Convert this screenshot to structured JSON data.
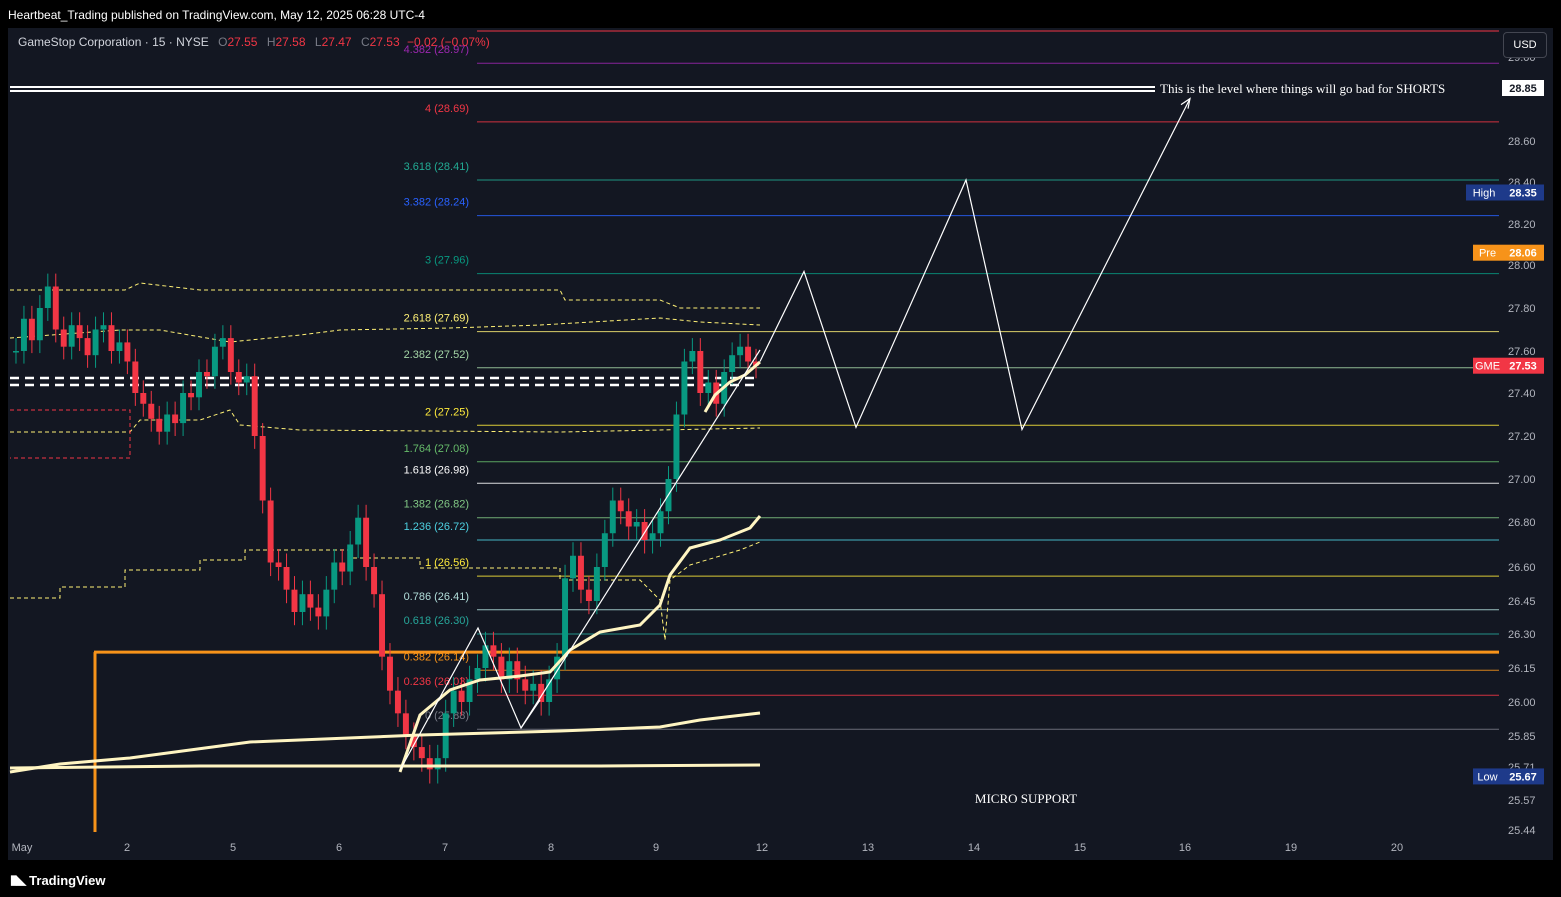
{
  "header": {
    "publisher": "Heartbeat_Trading published on TradingView.com, May 12, 2025 06:28 UTC-4"
  },
  "legend": {
    "symbol": "GameStop Corporation · 15 · NYSE",
    "o_label": "O",
    "o": "27.55",
    "h_label": "H",
    "h": "27.58",
    "l_label": "L",
    "l": "27.47",
    "c_label": "C",
    "c": "27.53",
    "change": "−0.02 (−0.07%)"
  },
  "currency_button": "USD",
  "footer": {
    "brand": "TradingView"
  },
  "colors": {
    "up": "#089981",
    "down": "#f23645",
    "vwap": "#fff5c2",
    "orange": "#f7931a",
    "bg": "#131722"
  },
  "chart_data": {
    "type": "candlestick",
    "title": "",
    "y_ticks": [
      "29.00",
      "28.85",
      "28.60",
      "28.40",
      "28.20",
      "28.00",
      "27.80",
      "27.60",
      "27.40",
      "27.20",
      "27.00",
      "26.80",
      "26.60",
      "26.45",
      "26.30",
      "26.15",
      "26.00",
      "25.85",
      "25.71",
      "25.57",
      "25.44"
    ],
    "x_ticks": [
      "May",
      "2",
      "5",
      "6",
      "7",
      "8",
      "9",
      "12",
      "13",
      "14",
      "15",
      "16",
      "19",
      "20"
    ],
    "fib_levels": [
      {
        "label": "4.382 (28.97)",
        "value": 28.97,
        "color": "#9c27b0"
      },
      {
        "label": "4 (28.69)",
        "value": 28.69,
        "color": "#f23645"
      },
      {
        "label": "3.618 (28.41)",
        "value": 28.41,
        "color": "#22ab94"
      },
      {
        "label": "3.382 (28.24)",
        "value": 28.24,
        "color": "#2962ff"
      },
      {
        "label": "3 (27.96)",
        "value": 27.96,
        "color": "#089981"
      },
      {
        "label": "2.618 (27.69)",
        "value": 27.69,
        "color": "#fff176"
      },
      {
        "label": "2.382 (27.52)",
        "value": 27.52,
        "color": "#a5d6a7"
      },
      {
        "label": "2 (27.25)",
        "value": 27.25,
        "color": "#ffeb3b"
      },
      {
        "label": "1.764 (27.08)",
        "value": 27.08,
        "color": "#66bb6a"
      },
      {
        "label": "1.618 (26.98)",
        "value": 26.98,
        "color": "#ffffff"
      },
      {
        "label": "1.382 (26.82)",
        "value": 26.82,
        "color": "#81c784"
      },
      {
        "label": "1.236 (26.72)",
        "value": 26.72,
        "color": "#4dd0e1"
      },
      {
        "label": "1 (26.56)",
        "value": 26.56,
        "color": "#ffeb3b"
      },
      {
        "label": "0.786 (26.41)",
        "value": 26.41,
        "color": "#b2dfdb"
      },
      {
        "label": "0.618 (26.30)",
        "value": 26.3,
        "color": "#26a69a"
      },
      {
        "label": "0.382 (26.14)",
        "value": 26.14,
        "color": "#f7931a"
      },
      {
        "label": "0.236 (26.03)",
        "value": 26.03,
        "color": "#f23645"
      },
      {
        "label": "0 (25.88)",
        "value": 25.88,
        "color": "#787b86"
      }
    ],
    "price_tags": [
      {
        "label": "",
        "value": "28.85",
        "price": 28.85,
        "bg": "#ffffff",
        "fg": "#131722"
      },
      {
        "label": "High",
        "value": "28.35",
        "price": 28.35,
        "bg": "#1e3a8a",
        "fg": "#ffffff"
      },
      {
        "label": "Pre",
        "value": "28.06",
        "price": 28.06,
        "bg": "#f7931a",
        "fg": "#ffffff"
      },
      {
        "label": "GME",
        "value": "27.53",
        "price": 27.53,
        "bg": "#f23645",
        "fg": "#ffffff"
      },
      {
        "label": "Low",
        "value": "25.67",
        "price": 25.67,
        "bg": "#1e3a8a",
        "fg": "#ffffff"
      }
    ],
    "annotations": {
      "shorts_level": "This is the level where things will go bad for SHORTS",
      "shorts_price": 28.85,
      "support": "MICRO SUPPORT",
      "support_price": 26.22
    },
    "candles_close": [
      27.6,
      27.75,
      27.65,
      27.8,
      27.9,
      27.7,
      27.62,
      27.72,
      27.66,
      27.58,
      27.7,
      27.72,
      27.6,
      27.64,
      27.55,
      27.4,
      27.35,
      27.28,
      27.22,
      27.3,
      27.26,
      27.4,
      27.38,
      27.5,
      27.48,
      27.62,
      27.66,
      27.5,
      27.45,
      27.48,
      27.2,
      26.9,
      26.62,
      26.6,
      26.5,
      26.4,
      26.48,
      26.42,
      26.38,
      26.5,
      26.62,
      26.58,
      26.7,
      26.82,
      26.6,
      26.48,
      26.2,
      26.05,
      25.95,
      25.85,
      25.8,
      25.75,
      25.7,
      25.75,
      25.95,
      26.05,
      26.0,
      26.1,
      26.15,
      26.25,
      26.2,
      26.1,
      26.18,
      26.1,
      26.05,
      26.08,
      26.0,
      26.1,
      26.2,
      26.55,
      26.65,
      26.5,
      26.45,
      26.6,
      26.75,
      26.9,
      26.85,
      26.78,
      26.8,
      26.72,
      26.75,
      26.85,
      27.0,
      27.3,
      27.55,
      27.6,
      27.4,
      27.45,
      27.35,
      27.5,
      27.58,
      27.62,
      27.55,
      27.53
    ],
    "candles_x_start": 12,
    "candles_x_end": 760,
    "projection": [
      [
        760,
        27.55
      ],
      [
        804,
        27.97
      ],
      [
        856,
        27.24
      ],
      [
        966,
        28.41
      ],
      [
        1022,
        27.23
      ],
      [
        1190,
        28.8
      ]
    ]
  }
}
